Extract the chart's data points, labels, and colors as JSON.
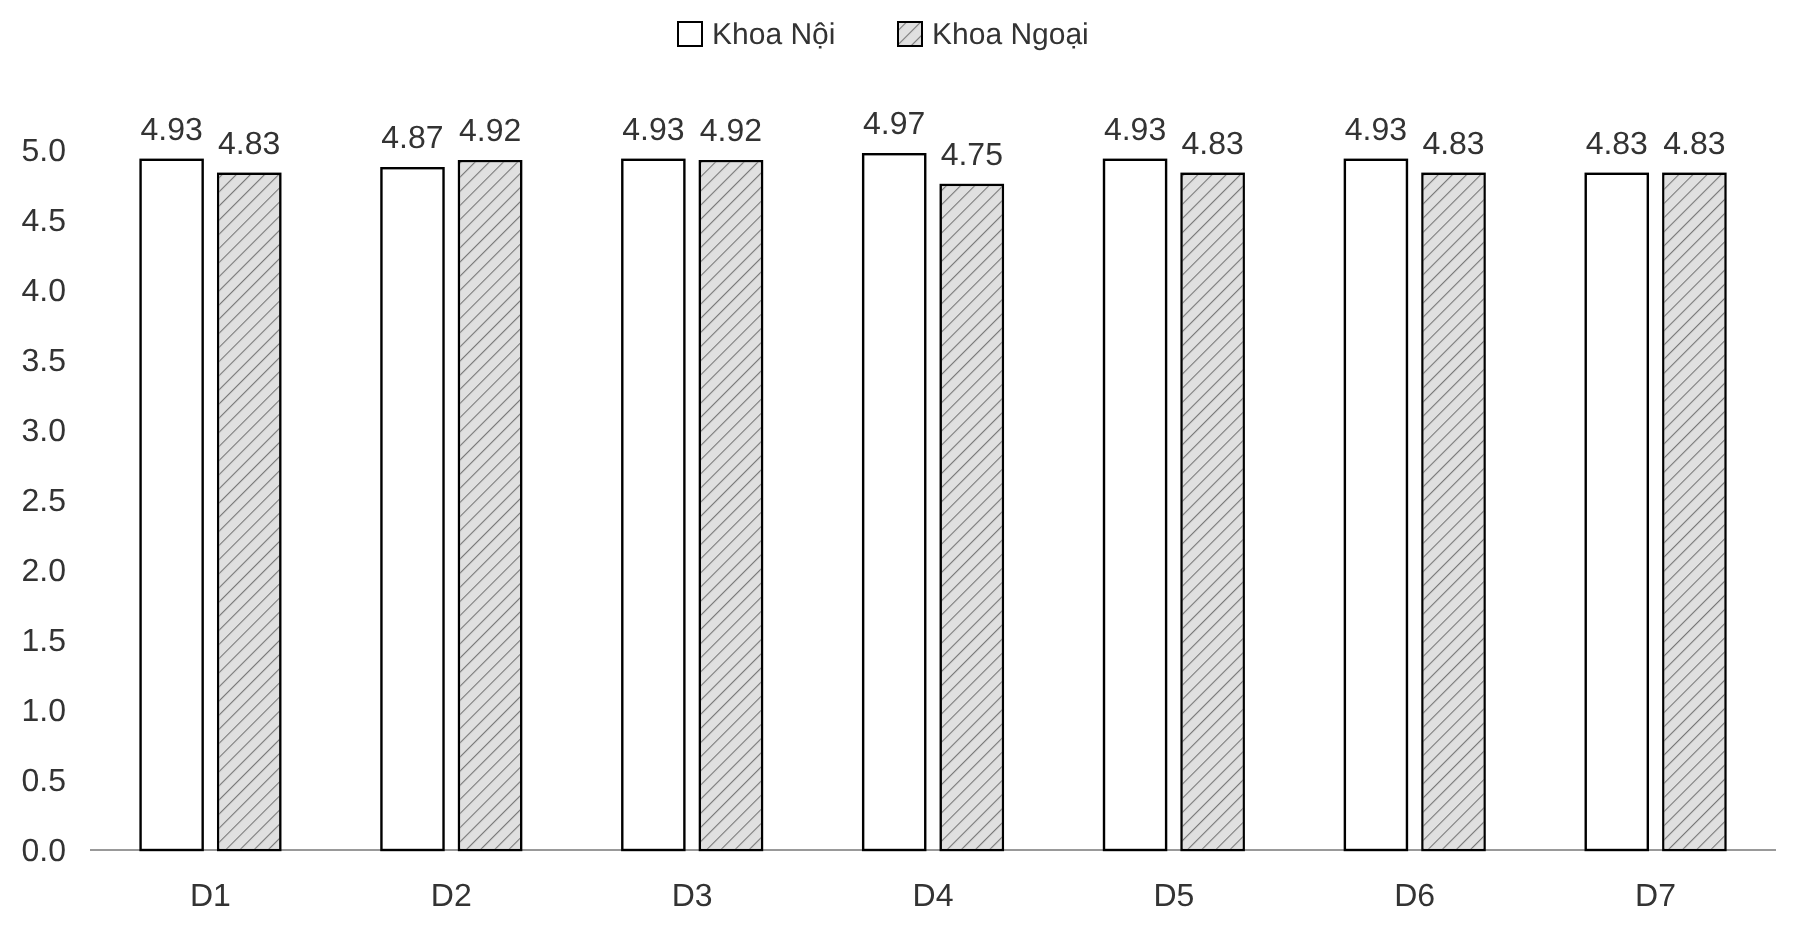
{
  "chart_data": {
    "type": "bar",
    "categories": [
      "D1",
      "D2",
      "D3",
      "D4",
      "D5",
      "D6",
      "D7"
    ],
    "series": [
      {
        "name": "Khoa Nội",
        "color": "#ffffff",
        "values": [
          4.93,
          4.87,
          4.93,
          4.97,
          4.93,
          4.93,
          4.83
        ]
      },
      {
        "name": "Khoa Ngoại",
        "color": "#e0e0e0",
        "values": [
          4.83,
          4.92,
          4.92,
          4.75,
          4.83,
          4.83,
          4.83
        ]
      }
    ],
    "ylim": [
      0,
      5
    ],
    "yticks": [
      {
        "value": 0,
        "label": "0.0"
      },
      {
        "value": 0.5,
        "label": "0.5"
      },
      {
        "value": 1,
        "label": "1.0"
      },
      {
        "value": 1.5,
        "label": "1.5"
      },
      {
        "value": 2,
        "label": "2.0"
      },
      {
        "value": 2.5,
        "label": "2.5"
      },
      {
        "value": 3,
        "label": "3.0"
      },
      {
        "value": 3.5,
        "label": "3.5"
      },
      {
        "value": 4,
        "label": "4.0"
      },
      {
        "value": 4.5,
        "label": "4.5"
      },
      {
        "value": 5,
        "label": "5.0"
      }
    ],
    "data_labels": true,
    "legend": "top",
    "grid": false
  }
}
